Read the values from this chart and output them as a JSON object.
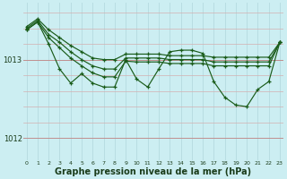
{
  "background_color": "#cceef2",
  "grid_color_v": "#b8dde2",
  "grid_color_h": "#c8a8a8",
  "line_color": "#1a5c1a",
  "xlabel": "Graphe pression niveau de la mer (hPa)",
  "xlabel_fontsize": 7.0,
  "ytick_labels": [
    "1012",
    "1013"
  ],
  "ytick_vals": [
    1012,
    1013
  ],
  "ylim": [
    1011.72,
    1013.72
  ],
  "xlim": [
    -0.3,
    23.3
  ],
  "xticks": [
    0,
    1,
    2,
    3,
    4,
    5,
    6,
    7,
    8,
    9,
    10,
    11,
    12,
    13,
    14,
    15,
    16,
    17,
    18,
    19,
    20,
    21,
    22,
    23
  ],
  "series": [
    {
      "x": [
        0,
        1,
        2,
        3,
        4,
        5,
        6,
        7,
        8,
        9,
        10,
        11,
        12,
        13,
        14,
        15,
        16,
        17,
        18,
        19,
        20,
        21,
        22,
        23
      ],
      "y": [
        1013.42,
        1013.52,
        1013.38,
        1013.28,
        1013.18,
        1013.1,
        1013.02,
        1013.0,
        1013.0,
        1013.07,
        1013.07,
        1013.07,
        1013.07,
        1013.05,
        1013.05,
        1013.05,
        1013.05,
        1013.03,
        1013.03,
        1013.03,
        1013.03,
        1013.03,
        1013.03,
        1013.22
      ]
    },
    {
      "x": [
        0,
        1,
        2,
        3,
        4,
        5,
        6,
        7,
        8,
        9,
        10,
        11,
        12,
        13,
        14,
        15,
        16,
        17,
        18,
        19,
        20,
        21,
        22,
        23
      ],
      "y": [
        1013.4,
        1013.5,
        1013.32,
        1013.22,
        1013.1,
        1013.0,
        1012.92,
        1012.88,
        1012.88,
        1013.02,
        1013.02,
        1013.02,
        1013.02,
        1013.0,
        1013.0,
        1013.0,
        1013.0,
        1012.97,
        1012.97,
        1012.97,
        1012.97,
        1012.97,
        1012.97,
        1013.22
      ]
    },
    {
      "x": [
        0,
        1,
        2,
        3,
        4,
        5,
        6,
        7,
        8,
        9,
        10,
        11,
        12,
        13,
        14,
        15,
        16,
        17,
        18,
        19,
        20,
        21,
        22,
        23
      ],
      "y": [
        1013.38,
        1013.48,
        1013.28,
        1013.15,
        1013.02,
        1012.92,
        1012.83,
        1012.78,
        1012.78,
        1012.98,
        1012.97,
        1012.97,
        1012.97,
        1012.95,
        1012.95,
        1012.95,
        1012.95,
        1012.92,
        1012.92,
        1012.92,
        1012.92,
        1012.92,
        1012.92,
        1013.22
      ]
    },
    {
      "x": [
        0,
        1,
        2,
        3,
        4,
        5,
        6,
        7,
        8,
        9,
        10,
        11,
        12,
        13,
        14,
        15,
        16,
        17,
        18,
        19,
        20,
        21,
        22,
        23
      ],
      "y": [
        1013.38,
        1013.48,
        1013.2,
        1012.88,
        1012.7,
        1012.82,
        1012.7,
        1012.65,
        1012.65,
        1013.0,
        1012.75,
        1012.65,
        1012.88,
        1013.1,
        1013.12,
        1013.12,
        1013.08,
        1012.72,
        1012.52,
        1012.42,
        1012.4,
        1012.62,
        1012.72,
        1013.22
      ]
    }
  ]
}
